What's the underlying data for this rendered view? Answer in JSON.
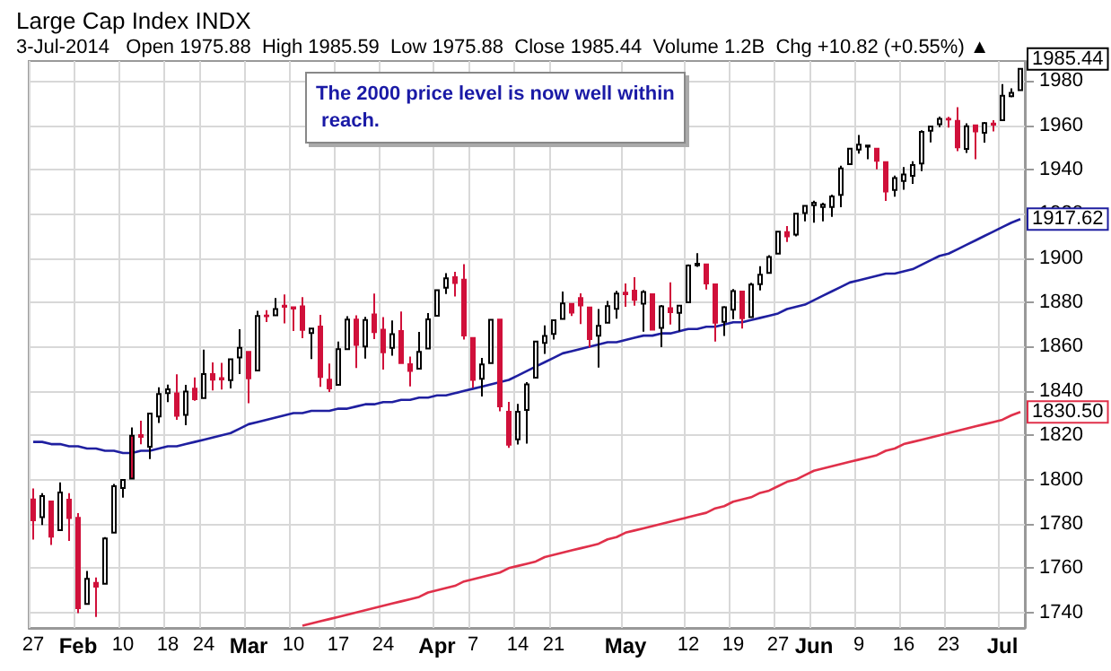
{
  "chart_data": {
    "type": "candlestick",
    "title": "Large Cap Index INDX",
    "subtitle": "3-Jul-2014   Open 1975.88  High 1985.59  Low 1975.88  Close 1985.44  Volume 1.2B  Chg +10.82 (+0.55%) ▲",
    "categories": [
      "27",
      null,
      null,
      null,
      null,
      "Feb",
      null,
      null,
      null,
      null,
      "10",
      null,
      null,
      null,
      null,
      "18",
      null,
      null,
      null,
      "24",
      null,
      null,
      null,
      null,
      "Mar",
      null,
      null,
      null,
      null,
      "10",
      null,
      null,
      null,
      null,
      "17",
      null,
      null,
      null,
      null,
      "24",
      null,
      null,
      null,
      null,
      null,
      "Apr",
      null,
      null,
      null,
      "7",
      null,
      null,
      null,
      null,
      "14",
      null,
      null,
      null,
      "21",
      null,
      null,
      null,
      null,
      null,
      null,
      null,
      "May",
      null,
      null,
      null,
      null,
      null,
      null,
      "12",
      null,
      null,
      null,
      null,
      "19",
      null,
      null,
      null,
      null,
      "27",
      null,
      null,
      null,
      "Jun",
      null,
      null,
      null,
      null,
      "9",
      null,
      null,
      null,
      null,
      "16",
      null,
      null,
      null,
      null,
      "23",
      null,
      null,
      null,
      null,
      null,
      "Jul",
      null,
      null
    ],
    "ohlc": [
      [
        1791.03,
        1795.98,
        1772.88,
        1781.56
      ],
      [
        1783.0,
        1793.87,
        1779.49,
        1792.5
      ],
      [
        1790.15,
        1790.15,
        1770.45,
        1774.2
      ],
      [
        1777.17,
        1798.77,
        1777.17,
        1794.19
      ],
      [
        1790.88,
        1793.88,
        1772.26,
        1782.59
      ],
      [
        1782.68,
        1784.83,
        1739.66,
        1741.89
      ],
      [
        1743.82,
        1758.73,
        1743.82,
        1755.2
      ],
      [
        1753.38,
        1755.79,
        1737.92,
        1751.64
      ],
      [
        1752.99,
        1774.06,
        1752.99,
        1773.43
      ],
      [
        1776.01,
        1798.03,
        1776.01,
        1797.02
      ],
      [
        1796.2,
        1799.94,
        1791.83,
        1799.84
      ],
      [
        1800.45,
        1823.54,
        1800.41,
        1819.75
      ],
      [
        1820.12,
        1826.55,
        1815.97,
        1819.26
      ],
      [
        1814.82,
        1830.25,
        1809.22,
        1829.83
      ],
      [
        1828.46,
        1841.65,
        1825.59,
        1838.63
      ],
      [
        1839.03,
        1842.87,
        1835.01,
        1840.76
      ],
      [
        1838.9,
        1847.5,
        1826.99,
        1828.75
      ],
      [
        1829.24,
        1842.79,
        1824.58,
        1839.78
      ],
      [
        1841.07,
        1846.13,
        1835.6,
        1836.25
      ],
      [
        1836.78,
        1858.71,
        1836.78,
        1847.61
      ],
      [
        1847.66,
        1852.91,
        1840.19,
        1845.12
      ],
      [
        1845.79,
        1852.65,
        1840.66,
        1845.16
      ],
      [
        1844.9,
        1854.53,
        1841.13,
        1854.29
      ],
      [
        1855.12,
        1867.92,
        1847.67,
        1859.45
      ],
      [
        1857.68,
        1857.68,
        1834.44,
        1845.73
      ],
      [
        1849.23,
        1876.23,
        1849.23,
        1873.91
      ],
      [
        1874.05,
        1876.53,
        1871.11,
        1873.81
      ],
      [
        1874.18,
        1881.94,
        1874.18,
        1877.03
      ],
      [
        1878.52,
        1883.57,
        1870.56,
        1878.04
      ],
      [
        1877.86,
        1877.87,
        1867.04,
        1877.17
      ],
      [
        1878.26,
        1882.35,
        1863.88,
        1867.63
      ],
      [
        1866.15,
        1868.38,
        1854.38,
        1868.2
      ],
      [
        1869.06,
        1874.4,
        1841.86,
        1846.34
      ],
      [
        1845.07,
        1852.44,
        1839.57,
        1841.13
      ],
      [
        1842.81,
        1862.3,
        1842.81,
        1858.83
      ],
      [
        1858.92,
        1873.76,
        1858.92,
        1872.25
      ],
      [
        1872.25,
        1874.14,
        1850.35,
        1860.77
      ],
      [
        1860.09,
        1873.49,
        1854.63,
        1872.01
      ],
      [
        1874.53,
        1883.97,
        1863.46,
        1866.52
      ],
      [
        1867.67,
        1873.34,
        1849.69,
        1857.44
      ],
      [
        1859.48,
        1871.87,
        1855.96,
        1865.62
      ],
      [
        1867.09,
        1875.92,
        1852.56,
        1852.56
      ],
      [
        1852.11,
        1855.55,
        1842.11,
        1849.04
      ],
      [
        1850.07,
        1866.63,
        1850.07,
        1857.62
      ],
      [
        1859.16,
        1875.18,
        1859.16,
        1872.34
      ],
      [
        1873.96,
        1885.84,
        1873.96,
        1885.52
      ],
      [
        1886.61,
        1893.17,
        1883.79,
        1890.9
      ],
      [
        1891.43,
        1893.8,
        1882.65,
        1888.77
      ],
      [
        1890.25,
        1897.28,
        1863.26,
        1865.09
      ],
      [
        1863.92,
        1864.04,
        1841.48,
        1845.04
      ],
      [
        1845.48,
        1854.95,
        1837.49,
        1851.96
      ],
      [
        1852.64,
        1872.43,
        1852.38,
        1872.18
      ],
      [
        1872.28,
        1872.53,
        1830.87,
        1833.08
      ],
      [
        1830.65,
        1835.07,
        1814.36,
        1815.69
      ],
      [
        1818.18,
        1834.19,
        1815.8,
        1830.61
      ],
      [
        1831.45,
        1844.02,
        1816.29,
        1842.98
      ],
      [
        1846.01,
        1862.31,
        1846.01,
        1862.31
      ],
      [
        1861.73,
        1869.63,
        1856.72,
        1864.85
      ],
      [
        1865.79,
        1871.89,
        1863.18,
        1871.89
      ],
      [
        1872.57,
        1884.89,
        1872.57,
        1879.55
      ],
      [
        1879.32,
        1879.75,
        1873.91,
        1875.39
      ],
      [
        1881.97,
        1884.06,
        1870.24,
        1878.61
      ],
      [
        1877.72,
        1877.72,
        1859.7,
        1863.4
      ],
      [
        1865.0,
        1877.01,
        1850.61,
        1869.43
      ],
      [
        1870.78,
        1880.6,
        1870.78,
        1878.33
      ],
      [
        1877.1,
        1885.2,
        1872.69,
        1883.95
      ],
      [
        1884.39,
        1888.59,
        1878.04,
        1883.68
      ],
      [
        1885.3,
        1891.33,
        1878.5,
        1881.14
      ],
      [
        1879.45,
        1885.51,
        1866.77,
        1884.66
      ],
      [
        1883.69,
        1883.69,
        1867.72,
        1867.72
      ],
      [
        1868.53,
        1878.83,
        1859.79,
        1878.21
      ],
      [
        1877.39,
        1889.07,
        1870.05,
        1875.63
      ],
      [
        1875.27,
        1878.57,
        1867.02,
        1878.48
      ],
      [
        1880.03,
        1897.13,
        1880.03,
        1896.65
      ],
      [
        1896.75,
        1902.17,
        1896.06,
        1897.45
      ],
      [
        1897.13,
        1897.13,
        1885.77,
        1888.53
      ],
      [
        1888.16,
        1888.16,
        1862.36,
        1870.85
      ],
      [
        1871.19,
        1878.28,
        1864.82,
        1877.86
      ],
      [
        1876.66,
        1886.0,
        1872.42,
        1885.08
      ],
      [
        1884.88,
        1884.88,
        1868.14,
        1872.83
      ],
      [
        1873.34,
        1888.8,
        1873.34,
        1888.03
      ],
      [
        1888.19,
        1896.33,
        1885.39,
        1892.49
      ],
      [
        1893.32,
        1901.26,
        1893.32,
        1900.53
      ],
      [
        1902.01,
        1912.28,
        1902.01,
        1911.91
      ],
      [
        1911.77,
        1914.46,
        1907.3,
        1909.78
      ],
      [
        1910.6,
        1920.03,
        1909.82,
        1920.03
      ],
      [
        1920.33,
        1924.03,
        1916.64,
        1923.57
      ],
      [
        1923.87,
        1925.88,
        1915.98,
        1924.97
      ],
      [
        1923.07,
        1924.97,
        1916.58,
        1924.24
      ],
      [
        1923.06,
        1928.63,
        1918.6,
        1927.88
      ],
      [
        1928.52,
        1941.74,
        1922.93,
        1940.46
      ],
      [
        1942.41,
        1949.44,
        1942.41,
        1949.44
      ],
      [
        1948.97,
        1955.55,
        1947.16,
        1951.27
      ],
      [
        1950.34,
        1950.86,
        1944.64,
        1950.79
      ],
      [
        1949.37,
        1949.37,
        1940.08,
        1943.89
      ],
      [
        1943.35,
        1943.35,
        1925.78,
        1930.11
      ],
      [
        1930.8,
        1937.3,
        1927.69,
        1936.16
      ],
      [
        1934.84,
        1941.15,
        1930.91,
        1937.78
      ],
      [
        1937.15,
        1943.69,
        1933.55,
        1941.99
      ],
      [
        1942.73,
        1957.74,
        1939.29,
        1956.98
      ],
      [
        1957.5,
        1959.87,
        1952.26,
        1959.48
      ],
      [
        1960.45,
        1963.91,
        1959.17,
        1962.87
      ],
      [
        1962.92,
        1963.74,
        1958.89,
        1962.61
      ],
      [
        1961.97,
        1968.17,
        1948.34,
        1949.98
      ],
      [
        1949.27,
        1960.83,
        1947.49,
        1959.53
      ],
      [
        1959.89,
        1959.89,
        1944.69,
        1957.22
      ],
      [
        1956.56,
        1961.47,
        1952.18,
        1960.96
      ],
      [
        1960.79,
        1962.29,
        1957.22,
        1960.23
      ],
      [
        1962.29,
        1978.58,
        1962.29,
        1973.32
      ],
      [
        1973.06,
        1976.67,
        1972.58,
        1974.62
      ],
      [
        1975.88,
        1985.59,
        1975.88,
        1985.44
      ]
    ],
    "colors": [
      "#d0103a",
      "#ffffff",
      "#d0103a",
      "#ffffff",
      "#d0103a",
      "#d0103a",
      "#ffffff",
      "#d0103a",
      "#ffffff",
      "#ffffff",
      "#ffffff",
      "#d0103a",
      "#d0103a",
      "#ffffff",
      "#ffffff",
      "#ffffff",
      "#d0103a",
      "#ffffff",
      "#d0103a",
      "#ffffff",
      "#d0103a",
      "#d0103a",
      "#ffffff",
      "#ffffff",
      "#d0103a",
      "#ffffff",
      "#d0103a",
      "#ffffff",
      "#d0103a",
      "#d0103a",
      "#d0103a",
      "#ffffff",
      "#d0103a",
      "#d0103a",
      "#ffffff",
      "#ffffff",
      "#d0103a",
      "#ffffff",
      "#d0103a",
      "#d0103a",
      "#ffffff",
      "#d0103a",
      "#d0103a",
      "#ffffff",
      "#ffffff",
      "#ffffff",
      "#ffffff",
      "#d0103a",
      "#d0103a",
      "#d0103a",
      "#ffffff",
      "#ffffff",
      "#d0103a",
      "#d0103a",
      "#ffffff",
      "#ffffff",
      "#ffffff",
      "#ffffff",
      "#ffffff",
      "#ffffff",
      "#d0103a",
      "#d0103a",
      "#d0103a",
      "#ffffff",
      "#ffffff",
      "#ffffff",
      "#d0103a",
      "#d0103a",
      "#ffffff",
      "#d0103a",
      "#ffffff",
      "#d0103a",
      "#ffffff",
      "#ffffff",
      "#ffffff",
      "#d0103a",
      "#d0103a",
      "#ffffff",
      "#ffffff",
      "#d0103a",
      "#ffffff",
      "#ffffff",
      "#ffffff",
      "#ffffff",
      "#d0103a",
      "#ffffff",
      "#ffffff",
      "#ffffff",
      "#ffffff",
      "#ffffff",
      "#ffffff",
      "#ffffff",
      "#ffffff",
      "#d0103a",
      "#d0103a",
      "#d0103a",
      "#ffffff",
      "#ffffff",
      "#ffffff",
      "#ffffff",
      "#ffffff",
      "#ffffff",
      "#d0103a",
      "#d0103a",
      "#ffffff",
      "#d0103a",
      "#ffffff",
      "#d0103a",
      "#ffffff",
      "#ffffff",
      "#ffffff"
    ],
    "value_labels": [
      null,
      null,
      null,
      null,
      null,
      null,
      null,
      null,
      null,
      null,
      null,
      null,
      null,
      null,
      null,
      null,
      null,
      null,
      null,
      null,
      null,
      null,
      null,
      null,
      null,
      null,
      null,
      null,
      null,
      null,
      null,
      null,
      null,
      null,
      null,
      null,
      null,
      null,
      null,
      null,
      null,
      null,
      null,
      null,
      null,
      null,
      null,
      null,
      null,
      null,
      null,
      null,
      null,
      null,
      null,
      null,
      null,
      null,
      null,
      null,
      null,
      null,
      null,
      null,
      null,
      null,
      null,
      null,
      null,
      null,
      null,
      null,
      null,
      null,
      null,
      null,
      null,
      null,
      null,
      null,
      null,
      null,
      null,
      null,
      null,
      null,
      null,
      null,
      null,
      null,
      null,
      null,
      null,
      null,
      null,
      null,
      null,
      null,
      null,
      null,
      null,
      null,
      null,
      null,
      null,
      null,
      null,
      null,
      null,
      null,
      "1985.44"
    ],
    "series": [
      {
        "type": "line",
        "color": "#1f1fa0",
        "values": [
          1817,
          1817,
          1816,
          1816,
          1815,
          1815,
          1814,
          1814,
          1813,
          1813,
          1812,
          1812,
          1813,
          1813,
          1814,
          1815,
          1815,
          1816,
          1817,
          1818,
          1819,
          1820,
          1821,
          1823,
          1825,
          1826,
          1827,
          1828,
          1829,
          1830,
          1830,
          1831,
          1831,
          1831,
          1832,
          1832,
          1833,
          1834,
          1834,
          1835,
          1835,
          1836,
          1836,
          1837,
          1837,
          1838,
          1838,
          1839,
          1840,
          1841,
          1842,
          1843,
          1844,
          1845,
          1847,
          1849,
          1851,
          1853,
          1855,
          1857,
          1858,
          1859,
          1860,
          1861,
          1862,
          1862,
          1863,
          1864,
          1865,
          1865,
          1866,
          1866,
          1867,
          1868,
          1868,
          1869,
          1869,
          1870,
          1871,
          1871,
          1872,
          1873,
          1874,
          1875,
          1877,
          1878,
          1879,
          1881,
          1883,
          1885,
          1887,
          1889,
          1890,
          1891,
          1892,
          1893,
          1893,
          1894,
          1895,
          1897,
          1899,
          1901,
          1902,
          1904,
          1906,
          1908,
          1910,
          1912,
          1914,
          1916,
          1917.62
        ],
        "value_labels": [
          null,
          null,
          null,
          null,
          null,
          null,
          null,
          null,
          null,
          null,
          null,
          null,
          null,
          null,
          null,
          null,
          null,
          null,
          null,
          null,
          null,
          null,
          null,
          null,
          null,
          null,
          null,
          null,
          null,
          null,
          null,
          null,
          null,
          null,
          null,
          null,
          null,
          null,
          null,
          null,
          null,
          null,
          null,
          null,
          null,
          null,
          null,
          null,
          null,
          null,
          null,
          null,
          null,
          null,
          null,
          null,
          null,
          null,
          null,
          null,
          null,
          null,
          null,
          null,
          null,
          null,
          null,
          null,
          null,
          null,
          null,
          null,
          null,
          null,
          null,
          null,
          null,
          null,
          null,
          null,
          null,
          null,
          null,
          null,
          null,
          null,
          null,
          null,
          null,
          null,
          null,
          null,
          null,
          null,
          null,
          null,
          null,
          null,
          null,
          null,
          null,
          null,
          null,
          null,
          null,
          null,
          null,
          null,
          null,
          null,
          "1917.62"
        ]
      },
      {
        "type": "line",
        "color": "#e0304a",
        "values": [
          null,
          null,
          null,
          null,
          null,
          null,
          null,
          null,
          null,
          null,
          null,
          null,
          null,
          null,
          null,
          null,
          null,
          null,
          null,
          null,
          null,
          null,
          null,
          null,
          null,
          null,
          null,
          null,
          null,
          null,
          1734,
          1735,
          1736,
          1737,
          1738,
          1739,
          1740,
          1741,
          1742,
          1743,
          1744,
          1745,
          1746,
          1747,
          1749,
          1750,
          1751,
          1752,
          1754,
          1755,
          1756,
          1757,
          1758,
          1760,
          1761,
          1762,
          1763,
          1765,
          1766,
          1767,
          1768,
          1769,
          1770,
          1771,
          1773,
          1774,
          1776,
          1777,
          1778,
          1779,
          1780,
          1781,
          1782,
          1783,
          1784,
          1785,
          1787,
          1788,
          1790,
          1791,
          1792,
          1794,
          1795,
          1797,
          1799,
          1800,
          1802,
          1804,
          1805,
          1806,
          1807,
          1808,
          1809,
          1810,
          1811,
          1813,
          1814,
          1816,
          1817,
          1818,
          1819,
          1820,
          1821,
          1822,
          1823,
          1824,
          1825,
          1826,
          1827,
          1829,
          1830.5
        ],
        "value_labels": [
          null,
          null,
          null,
          null,
          null,
          null,
          null,
          null,
          null,
          null,
          null,
          null,
          null,
          null,
          null,
          null,
          null,
          null,
          null,
          null,
          null,
          null,
          null,
          null,
          null,
          null,
          null,
          null,
          null,
          null,
          null,
          null,
          null,
          null,
          null,
          null,
          null,
          null,
          null,
          null,
          null,
          null,
          null,
          null,
          null,
          null,
          null,
          null,
          null,
          null,
          null,
          null,
          null,
          null,
          null,
          null,
          null,
          null,
          null,
          null,
          null,
          null,
          null,
          null,
          null,
          null,
          null,
          null,
          null,
          null,
          null,
          null,
          null,
          null,
          null,
          null,
          null,
          null,
          null,
          null,
          null,
          null,
          null,
          null,
          null,
          null,
          null,
          null,
          null,
          null,
          null,
          null,
          null,
          null,
          null,
          null,
          null,
          null,
          null,
          null,
          null,
          null,
          null,
          null,
          null,
          null,
          null,
          null,
          null,
          null,
          "1830.50"
        ]
      }
    ],
    "ylim": [
      1733,
      1989
    ],
    "yticks": [
      1740,
      1760,
      1780,
      1800,
      1820,
      1840,
      1860,
      1880,
      1900,
      1920,
      1940,
      1960,
      1980
    ],
    "grid": true,
    "marker": "none",
    "annotations": [
      "The 2000 price level is now well within reach."
    ]
  }
}
